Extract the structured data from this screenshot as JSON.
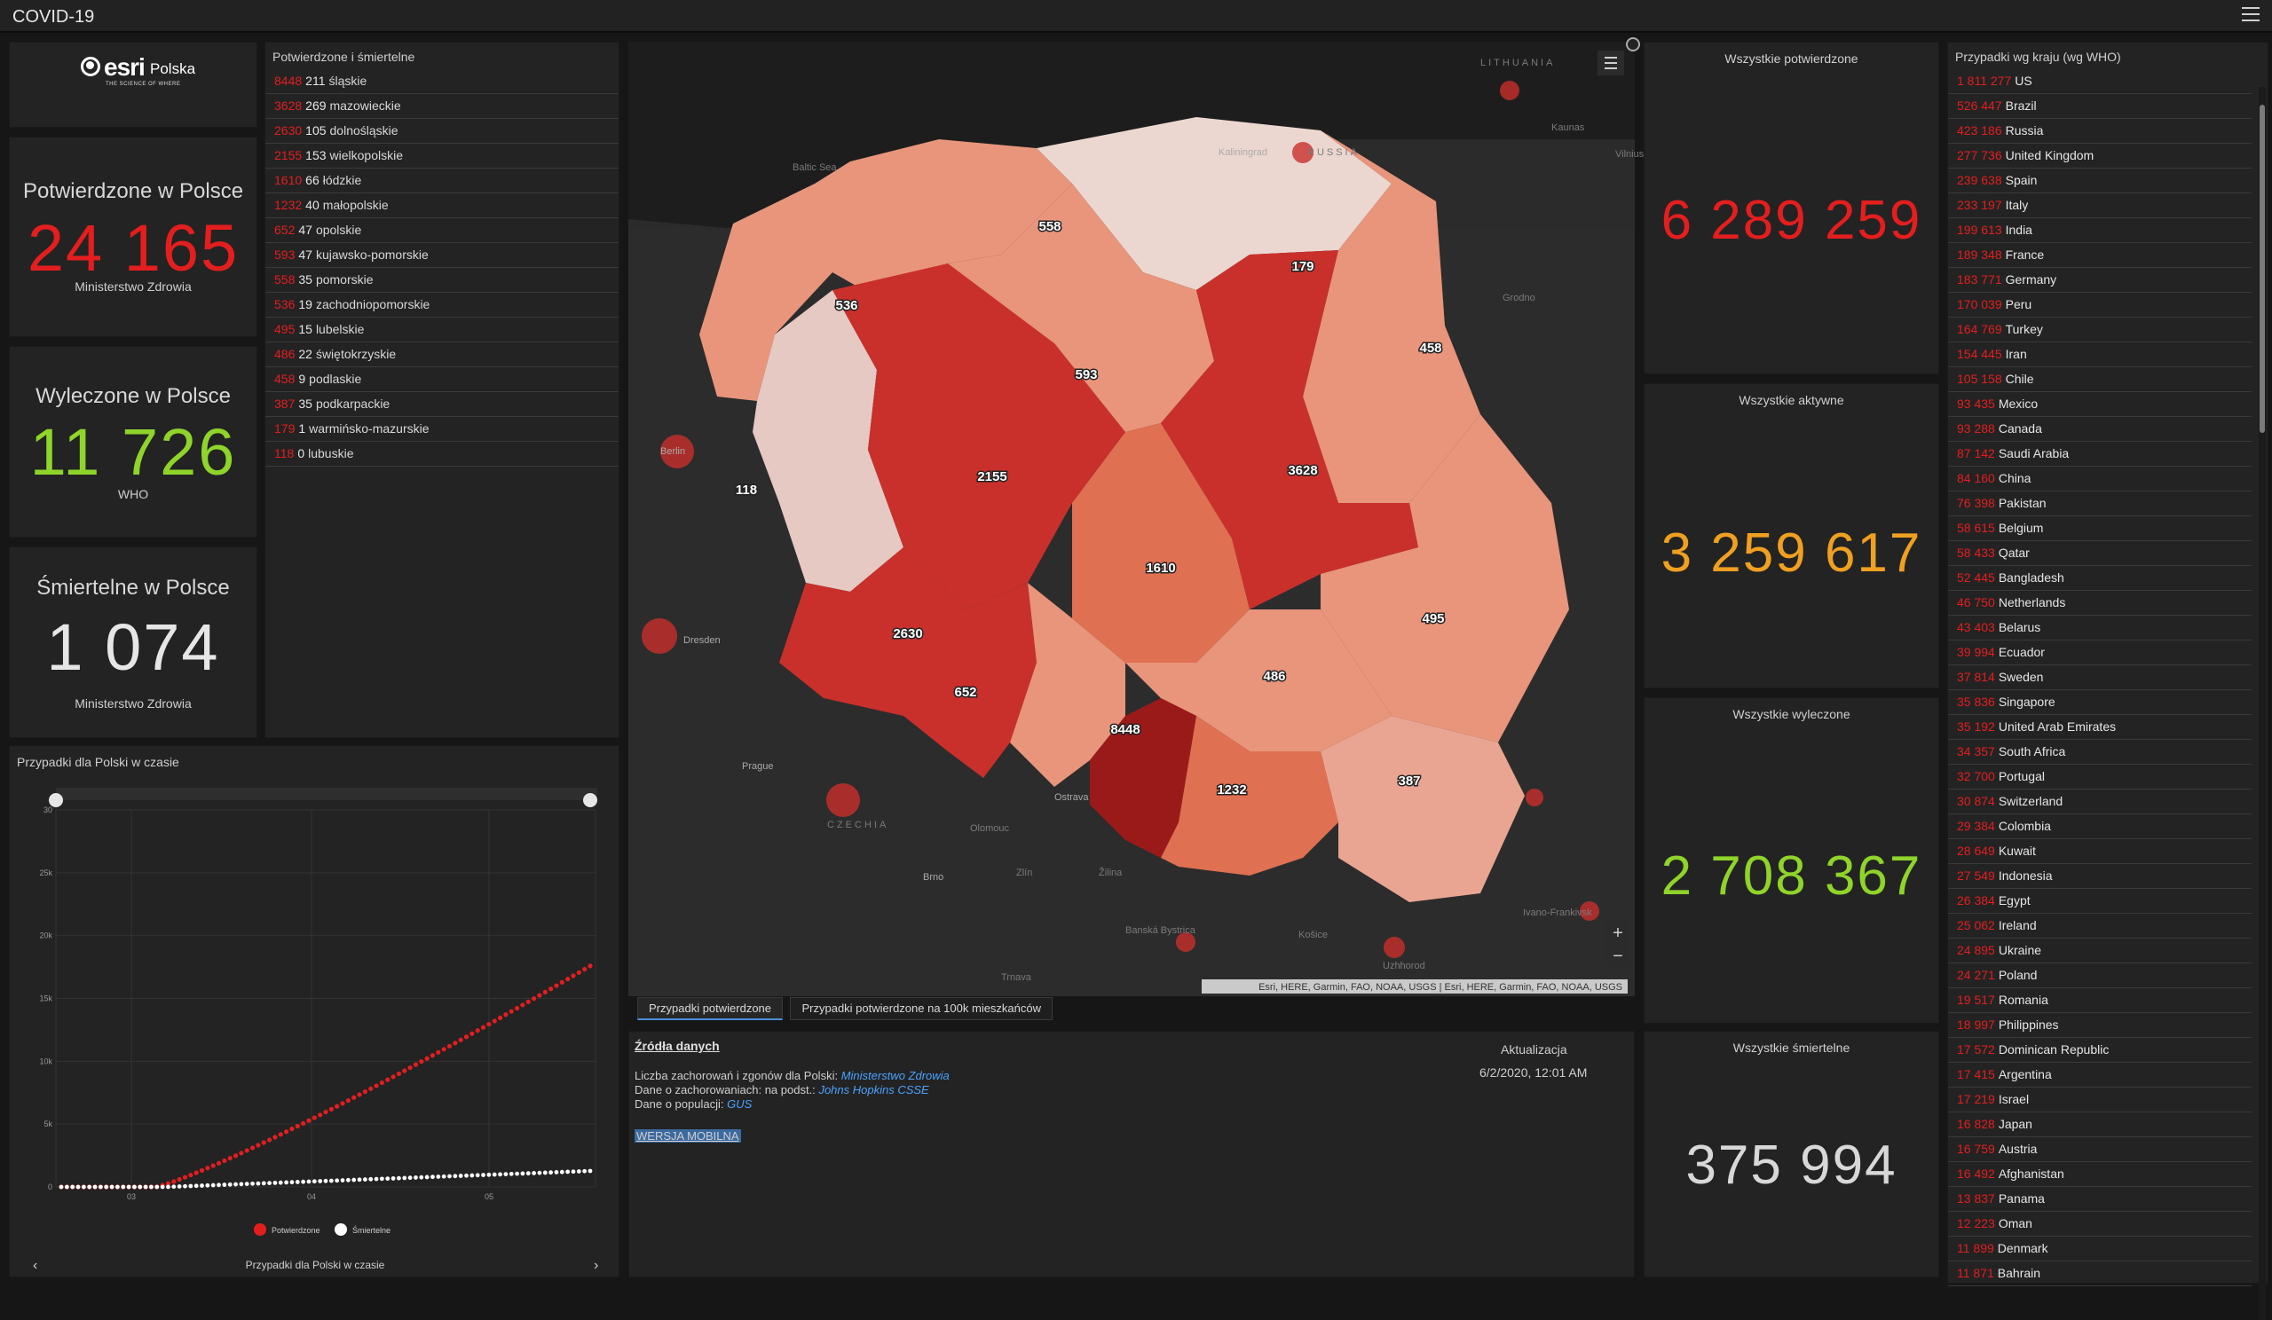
{
  "app": {
    "title": "COVID-19"
  },
  "logo": {
    "brand": "esri",
    "brand_suffix": "Polska",
    "tagline": "THE SCIENCE OF WHERE"
  },
  "kpis": {
    "confirmed": {
      "label": "Potwierdzone w Polsce",
      "value": "24 165",
      "source": "Ministerstwo Zdrowia",
      "color": "#e41e1e"
    },
    "recovered": {
      "label": "Wyleczone w Polsce",
      "value": "11 726",
      "source": "WHO",
      "color": "#8fd42a"
    },
    "deaths": {
      "label": "Śmiertelne w Polsce",
      "value": "1 074",
      "source": "Ministerstwo Zdrowia",
      "color": "#e6e6e6"
    }
  },
  "regions_list": {
    "title": "Potwierdzone i śmiertelne",
    "items": [
      {
        "confirmed": "8448",
        "deaths": "211",
        "name": "śląskie"
      },
      {
        "confirmed": "3628",
        "deaths": "269",
        "name": "mazowieckie"
      },
      {
        "confirmed": "2630",
        "deaths": "105",
        "name": "dolnośląskie"
      },
      {
        "confirmed": "2155",
        "deaths": "153",
        "name": "wielkopolskie"
      },
      {
        "confirmed": "1610",
        "deaths": "66",
        "name": "łódzkie"
      },
      {
        "confirmed": "1232",
        "deaths": "40",
        "name": "małopolskie"
      },
      {
        "confirmed": "652",
        "deaths": "47",
        "name": "opolskie"
      },
      {
        "confirmed": "593",
        "deaths": "47",
        "name": "kujawsko-pomorskie"
      },
      {
        "confirmed": "558",
        "deaths": "35",
        "name": "pomorskie"
      },
      {
        "confirmed": "536",
        "deaths": "19",
        "name": "zachodniopomorskie"
      },
      {
        "confirmed": "495",
        "deaths": "15",
        "name": "lubelskie"
      },
      {
        "confirmed": "486",
        "deaths": "22",
        "name": "świętokrzyskie"
      },
      {
        "confirmed": "458",
        "deaths": "9",
        "name": "podlaskie"
      },
      {
        "confirmed": "387",
        "deaths": "35",
        "name": "podkarpackie"
      },
      {
        "confirmed": "179",
        "deaths": "1",
        "name": "warmińsko-mazurskie"
      },
      {
        "confirmed": "118",
        "deaths": "0",
        "name": "lubuskie"
      }
    ]
  },
  "timeline": {
    "title": "Przypadki dla Polski w czasie",
    "footer": "Przypadki dla Polski w czasie",
    "y_ticks": [
      "30",
      "25k",
      "20k",
      "15k",
      "10k",
      "5k",
      "0"
    ],
    "x_ticks": [
      "03",
      "04",
      "05"
    ],
    "legend": [
      {
        "label": "Potwierdzone",
        "color": "#e41e1e"
      },
      {
        "label": "Śmiertelne",
        "color": "#ffffff"
      }
    ]
  },
  "map": {
    "attribution": "Esri, HERE, Garmin, FAO, NOAA, USGS | Esri, HERE, Garmin, FAO, NOAA, USGS",
    "region_labels": [
      "558",
      "179",
      "536",
      "593",
      "458",
      "118",
      "2155",
      "3628",
      "1610",
      "495",
      "2630",
      "486",
      "652",
      "8448",
      "387",
      "1232"
    ],
    "place_labels": [
      "LITHUANIA",
      "Kaunas",
      "Kaliningrad",
      "RUSSIA",
      "Baltic Sea",
      "Berlin",
      "Dresden",
      "Prague",
      "CZECHIA",
      "Ostrava",
      "Brno",
      "Grodno",
      "Vilnius",
      "Olomouc",
      "Zlín",
      "Žilina",
      "Banská Bystrica",
      "Trnava",
      "Košice",
      "Uzhhorod",
      "Ivano-Frankivsk"
    ],
    "zoom_in": "+",
    "zoom_out": "−"
  },
  "tabs": [
    {
      "label": "Przypadki potwierdzone"
    },
    {
      "label": "Przypadki potwierdzone na 100k mieszkańców"
    }
  ],
  "sources": {
    "title": "Źródła danych",
    "line1_text": "Liczba zachorowań i zgonów dla Polski:",
    "line1_link": "Ministerstwo Zdrowia",
    "line2_text": "Dane o zachorowaniach: na podst.:",
    "line2_link": "Johns Hopkins CSSE",
    "line3_text": "Dane o populacji:",
    "line3_link": "GUS",
    "mobile": "WERSJA MOBILNA"
  },
  "update": {
    "title": "Aktualizacja",
    "value": "6/2/2020, 12:01 AM"
  },
  "world_totals": {
    "confirmed": {
      "title": "Wszystkie potwierdzone",
      "value": "6 289 259",
      "color": "#e41e1e"
    },
    "active": {
      "title": "Wszystkie aktywne",
      "value": "3 259 617",
      "color": "#f0a020"
    },
    "recovered": {
      "title": "Wszystkie wyleczone",
      "value": "2 708 367",
      "color": "#8fd42a"
    },
    "deaths": {
      "title": "Wszystkie śmiertelne",
      "value": "375 994",
      "color": "#d8d8d8"
    }
  },
  "countries": {
    "title": "Przypadki wg kraju (wg WHO)",
    "items": [
      {
        "value": "1 811 277",
        "name": "US"
      },
      {
        "value": "526 447",
        "name": "Brazil"
      },
      {
        "value": "423 186",
        "name": "Russia"
      },
      {
        "value": "277 736",
        "name": "United Kingdom"
      },
      {
        "value": "239 638",
        "name": "Spain"
      },
      {
        "value": "233 197",
        "name": "Italy"
      },
      {
        "value": "199 613",
        "name": "India"
      },
      {
        "value": "189 348",
        "name": "France"
      },
      {
        "value": "183 771",
        "name": "Germany"
      },
      {
        "value": "170 039",
        "name": "Peru"
      },
      {
        "value": "164 769",
        "name": "Turkey"
      },
      {
        "value": "154 445",
        "name": "Iran"
      },
      {
        "value": "105 158",
        "name": "Chile"
      },
      {
        "value": "93 435",
        "name": "Mexico"
      },
      {
        "value": "93 288",
        "name": "Canada"
      },
      {
        "value": "87 142",
        "name": "Saudi Arabia"
      },
      {
        "value": "84 160",
        "name": "China"
      },
      {
        "value": "76 398",
        "name": "Pakistan"
      },
      {
        "value": "58 615",
        "name": "Belgium"
      },
      {
        "value": "58 433",
        "name": "Qatar"
      },
      {
        "value": "52 445",
        "name": "Bangladesh"
      },
      {
        "value": "46 750",
        "name": "Netherlands"
      },
      {
        "value": "43 403",
        "name": "Belarus"
      },
      {
        "value": "39 994",
        "name": "Ecuador"
      },
      {
        "value": "37 814",
        "name": "Sweden"
      },
      {
        "value": "35 836",
        "name": "Singapore"
      },
      {
        "value": "35 192",
        "name": "United Arab Emirates"
      },
      {
        "value": "34 357",
        "name": "South Africa"
      },
      {
        "value": "32 700",
        "name": "Portugal"
      },
      {
        "value": "30 874",
        "name": "Switzerland"
      },
      {
        "value": "29 384",
        "name": "Colombia"
      },
      {
        "value": "28 649",
        "name": "Kuwait"
      },
      {
        "value": "27 549",
        "name": "Indonesia"
      },
      {
        "value": "26 384",
        "name": "Egypt"
      },
      {
        "value": "25 062",
        "name": "Ireland"
      },
      {
        "value": "24 895",
        "name": "Ukraine"
      },
      {
        "value": "24 271",
        "name": "Poland"
      },
      {
        "value": "19 517",
        "name": "Romania"
      },
      {
        "value": "18 997",
        "name": "Philippines"
      },
      {
        "value": "17 572",
        "name": "Dominican Republic"
      },
      {
        "value": "17 415",
        "name": "Argentina"
      },
      {
        "value": "17 219",
        "name": "Israel"
      },
      {
        "value": "16 828",
        "name": "Japan"
      },
      {
        "value": "16 759",
        "name": "Austria"
      },
      {
        "value": "16 492",
        "name": "Afghanistan"
      },
      {
        "value": "13 837",
        "name": "Panama"
      },
      {
        "value": "12 223",
        "name": "Oman"
      },
      {
        "value": "11 899",
        "name": "Denmark"
      },
      {
        "value": "11 871",
        "name": "Bahrain"
      }
    ]
  }
}
